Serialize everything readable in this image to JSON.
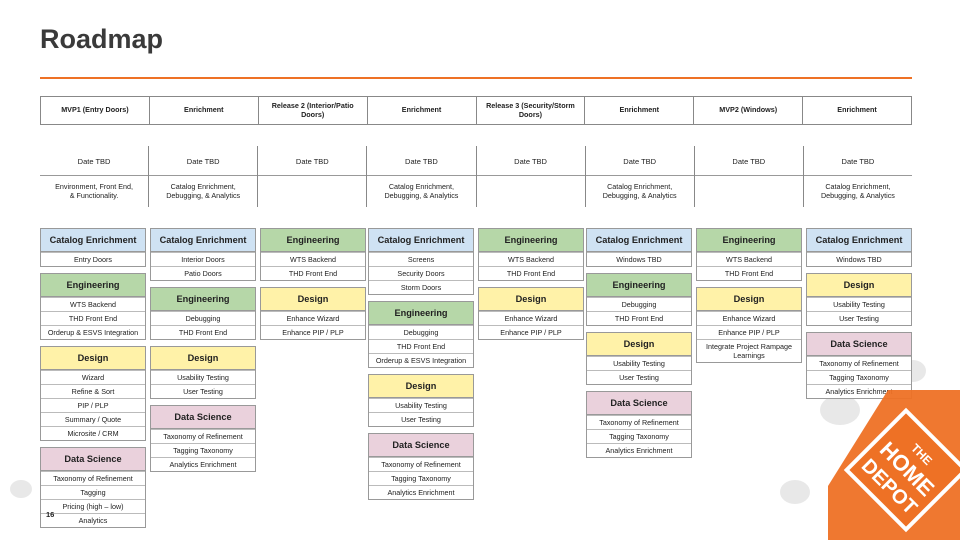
{
  "title": "Roadmap",
  "page_number": "16",
  "colors": {
    "accent": "#ee7125",
    "blue": "#cfe2f3",
    "green": "#b6d7a8",
    "yellow": "#fff2a8",
    "pink": "#ead1dc"
  },
  "logo": {
    "icon": "home-depot-logo",
    "text": "THE HOME DEPOT"
  },
  "phases": [
    {
      "header": "MVP1 (Entry Doors)",
      "date": "Date TBD",
      "note": "Environment, Front End,\n& Functionality."
    },
    {
      "header": "Enrichment",
      "date": "Date TBD",
      "note": "Catalog Enrichment,\nDebugging, & Analytics"
    },
    {
      "header": "Release 2 (Interior/Patio Doors)",
      "date": "Date TBD",
      "note": ""
    },
    {
      "header": "Enrichment",
      "date": "Date TBD",
      "note": "Catalog Enrichment,\nDebugging, & Analytics"
    },
    {
      "header": "Release 3 (Security/Storm Doors)",
      "date": "Date TBD",
      "note": ""
    },
    {
      "header": "Enrichment",
      "date": "Date TBD",
      "note": "Catalog Enrichment,\nDebugging, & Analytics"
    },
    {
      "header": "MVP2  (Windows)",
      "date": "Date TBD",
      "note": ""
    },
    {
      "header": "Enrichment",
      "date": "Date TBD",
      "note": "Catalog Enrichment,\nDebugging, & Analytics"
    }
  ],
  "columns": [
    {
      "groups": [
        {
          "title": "Catalog Enrichment",
          "color": "blue",
          "items": [
            "Entry Doors"
          ]
        },
        {
          "title": "Engineering",
          "color": "green",
          "items": [
            "WTS Backend",
            "THD Front End",
            "Orderup & ESVS Integration"
          ]
        },
        {
          "title": "Design",
          "color": "yellow",
          "items": [
            "Wizard",
            "Refine & Sort",
            "PIP / PLP",
            "Summary / Quote",
            "Microsite / CRM"
          ]
        },
        {
          "title": "Data Science",
          "color": "pink",
          "items": [
            "Taxonomy of Refinement",
            "Tagging",
            "Pricing (high – low)",
            "Analytics"
          ]
        }
      ]
    },
    {
      "groups": [
        {
          "title": "Catalog Enrichment",
          "color": "blue",
          "items": [
            "Interior Doors",
            "Patio Doors"
          ]
        },
        {
          "title": "Engineering",
          "color": "green",
          "items": [
            "Debugging",
            "THD Front End"
          ]
        },
        {
          "title": "Design",
          "color": "yellow",
          "items": [
            "Usability Testing",
            "User Testing"
          ]
        },
        {
          "title": "Data Science",
          "color": "pink",
          "items": [
            "Taxonomy of Refinement",
            "Tagging Taxonomy",
            "Analytics Enrichment"
          ]
        }
      ]
    },
    {
      "groups": [
        {
          "title": "Engineering",
          "color": "green",
          "items": [
            "WTS Backend",
            "THD Front End"
          ]
        },
        {
          "title": "Design",
          "color": "yellow",
          "items": [
            "Enhance Wizard",
            "Enhance PIP / PLP"
          ]
        }
      ]
    },
    {
      "groups": [
        {
          "title": "Catalog Enrichment",
          "color": "blue",
          "items": [
            "Screens",
            "Security Doors",
            "Storm Doors"
          ]
        },
        {
          "title": "Engineering",
          "color": "green",
          "items": [
            "Debugging",
            "THD Front End",
            "Orderup & ESVS Integration"
          ]
        },
        {
          "title": "Design",
          "color": "yellow",
          "items": [
            "Usability Testing",
            "User Testing"
          ]
        },
        {
          "title": "Data Science",
          "color": "pink",
          "items": [
            "Taxonomy of Refinement",
            "Tagging Taxonomy",
            "Analytics Enrichment"
          ]
        }
      ]
    },
    {
      "groups": [
        {
          "title": "Engineering",
          "color": "green",
          "items": [
            "WTS Backend",
            "THD Front End"
          ]
        },
        {
          "title": "Design",
          "color": "yellow",
          "items": [
            "Enhance Wizard",
            "Enhance PIP / PLP"
          ]
        }
      ]
    },
    {
      "groups": [
        {
          "title": "Catalog Enrichment",
          "color": "blue",
          "items": [
            "Windows TBD"
          ]
        },
        {
          "title": "Engineering",
          "color": "green",
          "items": [
            "Debugging",
            "THD Front End"
          ]
        },
        {
          "title": "Design",
          "color": "yellow",
          "items": [
            "Usability Testing",
            "User Testing"
          ]
        },
        {
          "title": "Data Science",
          "color": "pink",
          "items": [
            "Taxonomy of Refinement",
            "Tagging Taxonomy",
            "Analytics Enrichment"
          ]
        }
      ]
    },
    {
      "groups": [
        {
          "title": "Engineering",
          "color": "green",
          "items": [
            "WTS Backend",
            "THD Front End"
          ]
        },
        {
          "title": "Design",
          "color": "yellow",
          "items": [
            "Enhance Wizard",
            "Enhance PIP / PLP",
            "Integrate Project Rampage Learnings"
          ]
        }
      ]
    },
    {
      "groups": [
        {
          "title": "Catalog Enrichment",
          "color": "blue",
          "items": [
            "Windows TBD"
          ]
        },
        {
          "title": "Design",
          "color": "yellow",
          "items": [
            "Usability Testing",
            "User Testing"
          ]
        },
        {
          "title": "Data Science",
          "color": "pink",
          "items": [
            "Taxonomy of Refinement",
            "Tagging Taxonomy",
            "Analytics Enrichment"
          ]
        }
      ]
    }
  ]
}
